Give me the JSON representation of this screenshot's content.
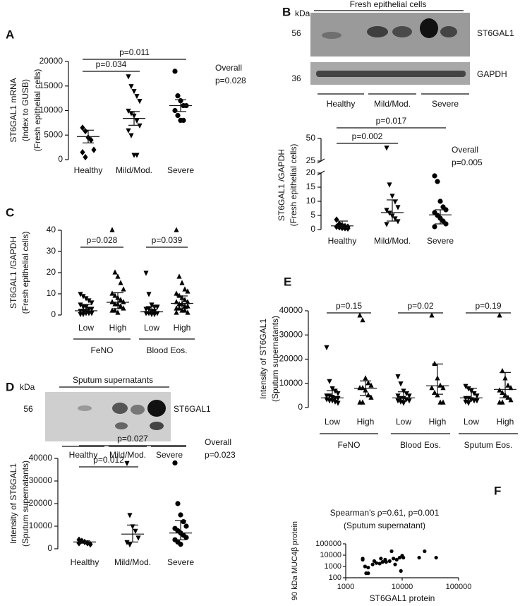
{
  "blots": [
    {
      "panel": "B",
      "unit": "kDa",
      "title": "Fresh epithelial cells",
      "markers": [
        "56",
        "36"
      ],
      "bands": [
        "ST6GAL1",
        "GAPDH"
      ],
      "lanes": [
        "Healthy",
        "Mild/Mod.",
        "Severe"
      ]
    },
    {
      "panel": "D",
      "unit": "kDa",
      "title": "Sputum supernatants",
      "markers": [
        "56"
      ],
      "bands": [
        "ST6GAL1"
      ],
      "lanes": [
        "Healthy",
        "Mild/Mod.",
        "Severe"
      ]
    }
  ],
  "chart_data": [
    {
      "type": "dotplot",
      "panel": "A",
      "ylabel": [
        "ST6GAL1 mRNA",
        "(Index to GUSB)",
        "(Fresh epithelial cells)"
      ],
      "categories": [
        "Healthy",
        "Mild/Mod.",
        "Severe"
      ],
      "markers": [
        "diamond",
        "tri-down",
        "circle"
      ],
      "points": [
        [
          6500,
          5800,
          4500,
          4000,
          2000,
          1500,
          500
        ],
        [
          17000,
          15000,
          14000,
          13000,
          12000,
          10000,
          9500,
          9000,
          8000,
          7000,
          6000,
          5000,
          1000,
          1000
        ],
        [
          18000,
          13000,
          12000,
          11000,
          11000,
          10000,
          9000,
          8000,
          8000
        ]
      ],
      "center": [
        4700,
        8400,
        11000
      ],
      "low": [
        3400,
        7000,
        9800
      ],
      "high": [
        6000,
        9800,
        12200
      ],
      "ylim": [
        0,
        20000
      ],
      "yticks": [
        0,
        5000,
        10000,
        15000,
        20000
      ],
      "comparisons": [
        {
          "from": 0,
          "to": 1,
          "label": "p=0.034"
        },
        {
          "from": 0,
          "to": 2,
          "label": "p=0.011"
        }
      ],
      "note": [
        "Overall",
        "p=0.028"
      ]
    },
    {
      "type": "dotplot",
      "ylabel": [
        "ST6GAL1 /GAPDH",
        "(Fresh epithelial cells)"
      ],
      "categories": [
        "Healthy",
        "Mild/Mod.",
        "Severe"
      ],
      "markers": [
        "diamond",
        "tri-down",
        "circle"
      ],
      "points": [
        [
          3.5,
          2,
          1.5,
          1.2,
          1,
          1,
          0.8,
          0.6,
          0.5,
          0.4
        ],
        [
          40,
          16,
          12,
          10,
          8,
          7,
          6,
          5,
          4,
          3,
          2
        ],
        [
          19,
          17,
          10,
          8,
          7,
          6,
          5,
          4,
          3,
          2,
          1
        ]
      ],
      "center": [
        1.3,
        6,
        5.2
      ],
      "low": [
        0.6,
        3,
        2
      ],
      "high": [
        3,
        10.5,
        7
      ],
      "ylim": [
        0,
        50
      ],
      "yticks": [
        0,
        5,
        10,
        15,
        20,
        25,
        50
      ],
      "axis_break": [
        20,
        25
      ],
      "comparisons": [
        {
          "from": 0,
          "to": 1,
          "label": "p=0.002"
        },
        {
          "from": 0,
          "to": 2,
          "label": "p=0.017"
        }
      ],
      "note": [
        "Overall",
        "p=0.005"
      ]
    },
    {
      "type": "dotplot",
      "panel": "C",
      "ylabel": [
        "ST6GAL1 /GAPDH",
        "(Fresh epithelial cells)"
      ],
      "categories": [
        "Low",
        "High",
        "Low",
        "High"
      ],
      "markers": [
        "tri-down",
        "tri",
        "tri-down",
        "tri"
      ],
      "points": [
        [
          10,
          9,
          8,
          7,
          6,
          5,
          4,
          4,
          3,
          3,
          2,
          2,
          1,
          1,
          1,
          0.5,
          0.5,
          2
        ],
        [
          40,
          20,
          18,
          15,
          12,
          10,
          9,
          8,
          7,
          6,
          6,
          5,
          5,
          4,
          3,
          2,
          2,
          1
        ],
        [
          20,
          10,
          5,
          4,
          4,
          3,
          3,
          2,
          2,
          1,
          1,
          1,
          0.5,
          0.5
        ],
        [
          40,
          18,
          15,
          12,
          11,
          10,
          9,
          8,
          7,
          6,
          6,
          5,
          5,
          4,
          4,
          3,
          3,
          2,
          2,
          1,
          1
        ]
      ],
      "center": [
        2,
        6,
        1.5,
        5.5
      ],
      "low": [
        1,
        3,
        0.5,
        3
      ],
      "high": [
        5,
        10.5,
        4,
        9
      ],
      "ylim": [
        0,
        40
      ],
      "yticks": [
        0,
        10,
        20,
        30,
        40
      ],
      "comparisons": [
        {
          "from": 0,
          "to": 1,
          "label": "p=0.028"
        },
        {
          "from": 2,
          "to": 3,
          "label": "p=0.039"
        }
      ],
      "groups": [
        {
          "name": "FeNO",
          "from": 0,
          "to": 1
        },
        {
          "name": "Blood Eos.",
          "from": 2,
          "to": 3
        }
      ]
    },
    {
      "type": "dotplot",
      "ylabel": [
        "Intensity of ST6GAL1",
        "(Sputum supernatants)"
      ],
      "categories": [
        "Healthy",
        "Mild/Mod.",
        "Severe"
      ],
      "markers": [
        "diamond",
        "tri-down",
        "circle"
      ],
      "points": [
        [
          4000,
          3500,
          3000,
          2500,
          2000,
          2500
        ],
        [
          38000,
          15000,
          10000,
          8000,
          5000,
          3000,
          2000
        ],
        [
          38000,
          20000,
          15000,
          12000,
          10000,
          9000,
          8000,
          7000,
          6000,
          5000,
          4000,
          3000,
          2000
        ]
      ],
      "center": [
        3000,
        6500,
        7000
      ],
      "low": [
        2500,
        3000,
        4000
      ],
      "high": [
        3500,
        10500,
        12500
      ],
      "ylim": [
        0,
        40000
      ],
      "yticks": [
        0,
        10000,
        20000,
        30000,
        40000
      ],
      "comparisons": [
        {
          "from": 0,
          "to": 1,
          "label": "p=0.012"
        },
        {
          "from": 0,
          "to": 2,
          "label": "p=0.027"
        }
      ],
      "note": [
        "Overall",
        "p=0.023"
      ]
    },
    {
      "type": "dotplot",
      "panel": "E",
      "ylabel": [
        "Intensity of ST6GAL1",
        "(Sputum supernatants)"
      ],
      "categories": [
        "Low",
        "High",
        "Low",
        "High",
        "Low",
        "High"
      ],
      "markers": [
        "tri-down",
        "tri",
        "tri-down",
        "tri",
        "tri-down",
        "tri"
      ],
      "points": [
        [
          25000,
          11000,
          8000,
          7000,
          6000,
          5000,
          5000,
          4500,
          4000,
          4000,
          3500,
          3000,
          3000,
          2500,
          2000
        ],
        [
          38000,
          36000,
          12000,
          10000,
          9000,
          8000,
          8000,
          7000,
          5000,
          4000,
          2000,
          2000
        ],
        [
          13000,
          10000,
          7000,
          6000,
          5000,
          5000,
          4000,
          4000,
          3500,
          3000,
          3000,
          2500,
          2000
        ],
        [
          38000,
          18000,
          12000,
          9000,
          8000,
          8000,
          6000,
          5000,
          2000,
          2000
        ],
        [
          9000,
          8000,
          7000,
          6000,
          5000,
          4000,
          4000,
          3500,
          3000,
          3000,
          2500,
          2000
        ],
        [
          38000,
          15000,
          12000,
          9000,
          8000,
          7000,
          6000,
          5000,
          4000,
          3000,
          2000,
          2000
        ]
      ],
      "center": [
        4000,
        8000,
        4000,
        9000,
        4000,
        7500
      ],
      "low": [
        3000,
        5000,
        3000,
        5500,
        3000,
        4000
      ],
      "high": [
        7000,
        11000,
        6500,
        18000,
        8000,
        14500
      ],
      "ylim": [
        0,
        40000
      ],
      "yticks": [
        0,
        10000,
        20000,
        30000,
        40000
      ],
      "comparisons": [
        {
          "from": 0,
          "to": 1,
          "label": "p=0.15"
        },
        {
          "from": 2,
          "to": 3,
          "label": "p=0.02"
        },
        {
          "from": 4,
          "to": 5,
          "label": "p=0.19"
        }
      ],
      "groups": [
        {
          "name": "FeNO",
          "from": 0,
          "to": 1
        },
        {
          "name": "Blood Eos.",
          "from": 2,
          "to": 3
        },
        {
          "name": "Sputum Eos.",
          "from": 4,
          "to": 5
        }
      ]
    },
    {
      "type": "scatter",
      "panel": "F",
      "title": [
        "Spearman's ρ=0.61, p=0.001",
        "(Sputum supernatant)"
      ],
      "xlabel": "ST6GAL1 protein",
      "ylabel": "90 kDa MUC4β protein",
      "log_x": true,
      "log_y": true,
      "x": [
        2000,
        2200,
        2500,
        2300,
        2500,
        3000,
        3200,
        3500,
        4000,
        4500,
        4200,
        5000,
        5200,
        6000,
        6500,
        7000,
        7500,
        8000,
        9000,
        9500,
        10000,
        10500,
        20000,
        25000,
        40000,
        2000
      ],
      "values": [
        4000,
        1000,
        800,
        250,
        250,
        1500,
        3000,
        2000,
        1800,
        2500,
        5000,
        4000,
        2500,
        3000,
        22000,
        5000,
        1500,
        4000,
        6000,
        400,
        9000,
        6000,
        6000,
        22000,
        6000,
        5000
      ],
      "xlim": [
        1000,
        100000
      ],
      "ylim": [
        100,
        100000
      ],
      "xticks": [
        1000,
        10000,
        100000
      ],
      "yticks": [
        100,
        1000,
        10000,
        100000
      ]
    }
  ]
}
